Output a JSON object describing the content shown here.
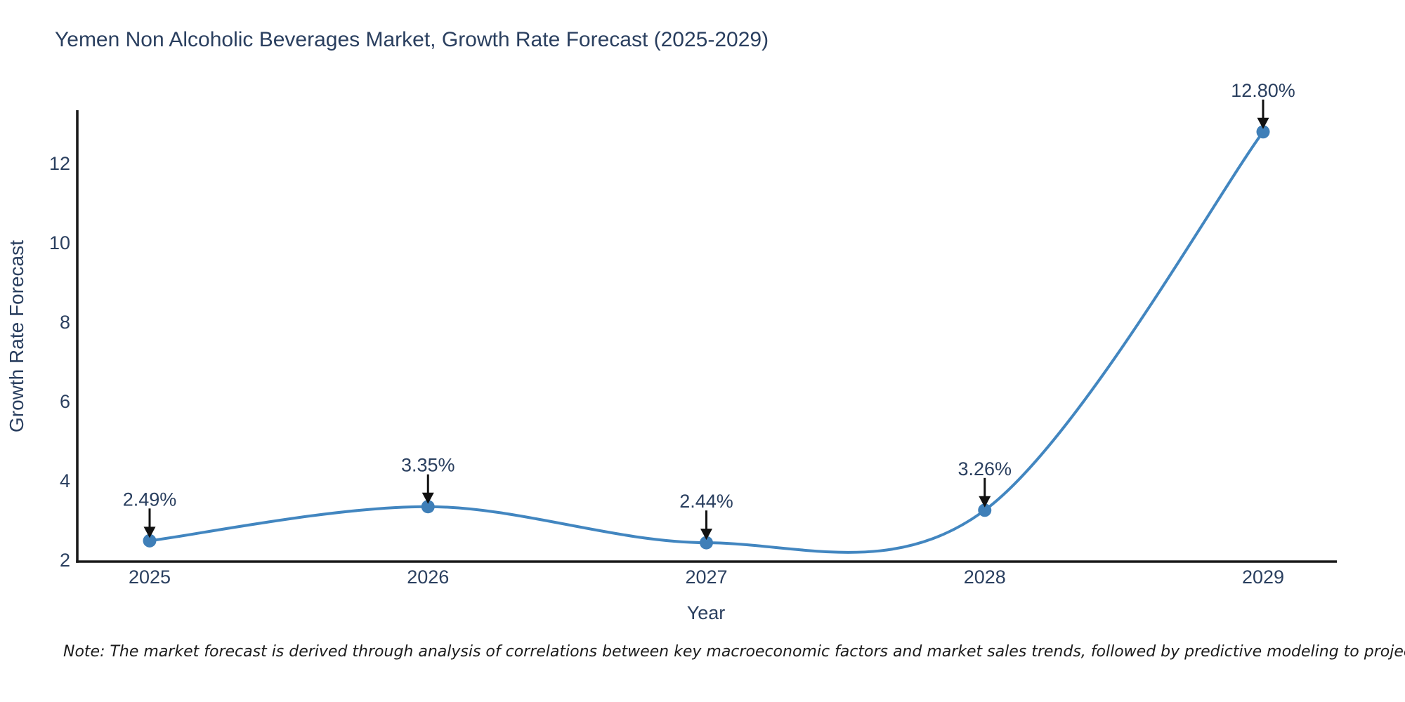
{
  "title": "Yemen Non Alcoholic Beverages Market, Growth Rate Forecast (2025-2029)",
  "note": "Note: The market forecast is derived through analysis of correlations between key macroeconomic factors and market sales trends, followed by predictive modeling to project future sales.",
  "chart_data": {
    "type": "line",
    "line_shape": "spline",
    "title": "Yemen Non Alcoholic Beverages Market, Growth Rate Forecast (2025-2029)",
    "xlabel": "Year",
    "ylabel": "Growth Rate Forecast",
    "categories": [
      "2025",
      "2026",
      "2027",
      "2028",
      "2029"
    ],
    "values": [
      2.49,
      3.35,
      2.44,
      3.26,
      12.8
    ],
    "point_labels": [
      "2.49%",
      "3.35%",
      "2.44%",
      "3.26%",
      "12.80%"
    ],
    "yticks": [
      2,
      4,
      6,
      8,
      10,
      12
    ],
    "ylim": [
      1.96,
      13.31
    ],
    "grid": false,
    "legend": "none",
    "colors": {
      "line": "#4286c0",
      "marker": "#3f7fb8",
      "text": "#2a3f5f",
      "axis": "#1a1a1a",
      "arrow": "#111111",
      "background": "#ffffff"
    }
  }
}
